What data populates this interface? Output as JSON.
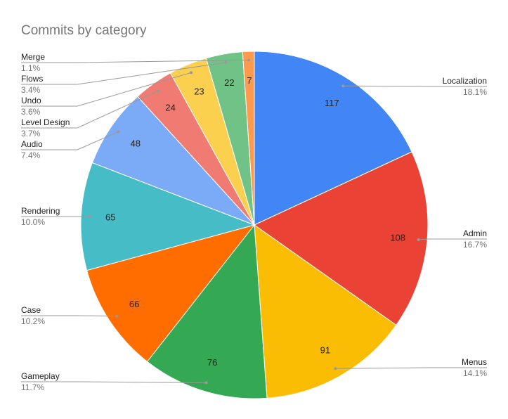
{
  "chart_data": {
    "type": "pie",
    "title": "Commits by category",
    "categories": [
      "Localization",
      "Admin",
      "Menus",
      "Gameplay",
      "Case",
      "Rendering",
      "Audio",
      "Level Design",
      "Undo",
      "Flows",
      "Merge"
    ],
    "values": [
      117,
      108,
      91,
      76,
      66,
      65,
      48,
      24,
      23,
      22,
      7
    ],
    "percent_labels": [
      "18.1%",
      "16.7%",
      "14.1%",
      "11.7%",
      "10.2%",
      "10.0%",
      "7.4%",
      "3.7%",
      "3.6%",
      "3.4%",
      "1.1%"
    ],
    "colors": [
      "#4285f4",
      "#ea4335",
      "#fbbc04",
      "#34a853",
      "#ff6d01",
      "#46bdc6",
      "#7baaf7",
      "#f07b72",
      "#fcd04f",
      "#71c287",
      "#ff994d"
    ]
  }
}
